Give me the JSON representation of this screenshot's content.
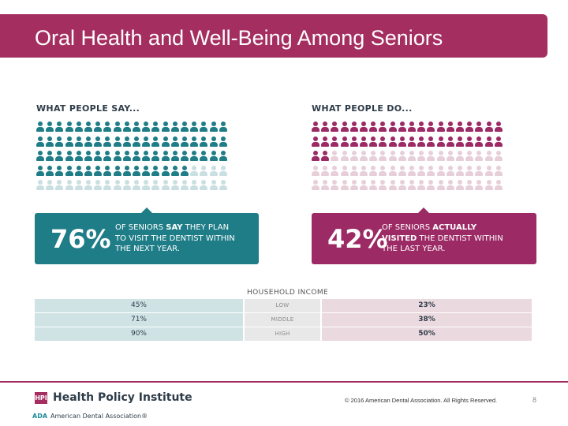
{
  "title": "Oral Health and Well-Being Among Seniors",
  "colors": {
    "brand": "#a52e61",
    "teal": "#1f7d87",
    "teal_light": "#c9dfe2",
    "plum": "#9c2a65",
    "plum_light": "#e7cfd9"
  },
  "say": {
    "heading": "WHAT PEOPLE SAY...",
    "percent_value": 76,
    "percent": "76%",
    "text_line1": "OF SENIORS ",
    "text_bold": "SAY",
    "text_line1_end": " THEY PLAN",
    "text_line2": "TO VISIT THE DENTIST WITHIN",
    "text_line3": "THE NEXT YEAR."
  },
  "do": {
    "heading": "WHAT PEOPLE DO...",
    "percent_value": 42,
    "percent": "42%",
    "text_line1": "OF SENIORS ",
    "text_bold": "ACTUALLY",
    "text_line2_bold": "VISITED",
    "text_line2_end": " THE DENTIST WITHIN",
    "text_line3": "THE LAST YEAR."
  },
  "household_income": {
    "label": "HOUSEHOLD INCOME",
    "rows": [
      {
        "say": "45%",
        "level": "LOW",
        "do": "23%"
      },
      {
        "say": "71%",
        "level": "MIDDLE",
        "do": "38%"
      },
      {
        "say": "90%",
        "level": "HIGH",
        "do": "50%"
      }
    ]
  },
  "footer": {
    "hpi_mark": "HPI",
    "hpi_name": "Health Policy Institute",
    "ada_mark": "ADA",
    "ada_name": "American Dental Association®",
    "copyright": "© 2016 American Dental Association. All Rights Reserved.",
    "page_number": "8"
  }
}
